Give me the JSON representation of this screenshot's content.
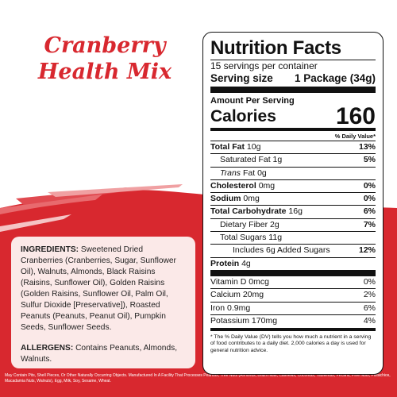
{
  "title": {
    "line1": "Cranberry",
    "line2": "Health Mix"
  },
  "colors": {
    "brand_red": "#d8282f",
    "card_bg": "#fbe9e8"
  },
  "ingredients": {
    "label": "INGREDIENTS:",
    "text": "Sweetened Dried Cranberries (Cranberries, Sugar, Sunflower Oil), Walnuts, Almonds, Black Raisins (Raisins, Sunflower Oil), Golden Raisins (Golden Raisins, Sunflower Oil, Palm Oil, Sulfur Dioxide [Preservative]), Roasted Peanuts (Peanuts, Peanut Oil), Pumpkin Seeds, Sunflower Seeds."
  },
  "allergens": {
    "label": "ALLERGENS:",
    "text": "Contains Peanuts, Almonds, Walnuts."
  },
  "footnote": "May Contain Pits, Shell Pieces, Or Other Naturally Occurring Objects. Manufactured In A Facility That Processes Peanuts, Tree Nuts (Almonds, Brazil Nuts, Cashews, Coconuts, Hazelnuts, Pecans, Pine Nuts, Pistachios, Macadamia Nuts, Walnuts), Egg, Milk, Soy, Sesame, Wheat.",
  "nutrition": {
    "title": "Nutrition Facts",
    "servings": "15 servings per container",
    "serving_size_label": "Serving size",
    "serving_size_value": "1 Package (34g)",
    "amount_per_serving": "Amount Per Serving",
    "calories_label": "Calories",
    "calories_value": "160",
    "dv_header": "% Daily Value*",
    "rows": {
      "total_fat": {
        "label": "Total Fat",
        "amount": "10g",
        "dv": "13%"
      },
      "sat_fat": {
        "label": "Saturated Fat",
        "amount": "1g",
        "dv": "5%"
      },
      "trans_fat": {
        "label_italic": "Trans",
        "label": "Fat",
        "amount": "0g"
      },
      "cholesterol": {
        "label": "Cholesterol",
        "amount": "0mg",
        "dv": "0%"
      },
      "sodium": {
        "label": "Sodium",
        "amount": "0mg",
        "dv": "0%"
      },
      "total_carb": {
        "label": "Total Carbohydrate",
        "amount": "16g",
        "dv": "6%"
      },
      "fiber": {
        "label": "Dietary Fiber",
        "amount": "2g",
        "dv": "7%"
      },
      "total_sugars": {
        "label": "Total Sugars",
        "amount": "11g"
      },
      "added_sugars": {
        "label": "Includes 6g Added Sugars",
        "dv": "12%"
      },
      "protein": {
        "label": "Protein",
        "amount": "4g"
      },
      "vit_d": {
        "label": "Vitamin D 0mcg",
        "dv": "0%"
      },
      "calcium": {
        "label": "Calcium 20mg",
        "dv": "2%"
      },
      "iron": {
        "label": "Iron 0.9mg",
        "dv": "6%"
      },
      "potassium": {
        "label": "Potassium 170mg",
        "dv": "4%"
      }
    },
    "footnote": "* The % Daily Value (DV) tells you how much a nutrient in a serving of food contributes to a daily diet. 2,000 calories a day is used for general nutrition advice."
  }
}
